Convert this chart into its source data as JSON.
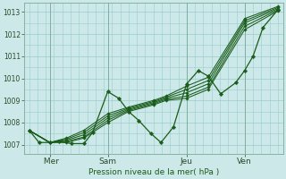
{
  "bg_color": "#cce8e8",
  "plot_bg": "#cce8e8",
  "grid_color": "#99cccc",
  "line_color": "#1a5c1a",
  "ylabel": "Pression niveau de la mer( hPa )",
  "ylim": [
    1006.6,
    1013.4
  ],
  "yticks": [
    1007,
    1008,
    1009,
    1010,
    1011,
    1012,
    1013
  ],
  "xtick_labels": [
    " Mer",
    "Sam",
    "Jeu",
    "Ven"
  ],
  "xtick_positions": [
    0.083,
    0.316,
    0.633,
    0.866
  ],
  "vline_positions": [
    0.083,
    0.316,
    0.633,
    0.866
  ],
  "fan_lines": [
    {
      "x": [
        0.0,
        0.083,
        0.15,
        0.22,
        0.316,
        0.4,
        0.5,
        0.55,
        0.633,
        0.72,
        0.866,
        1.0
      ],
      "y": [
        1007.65,
        1007.1,
        1007.1,
        1007.3,
        1008.0,
        1008.5,
        1008.8,
        1009.0,
        1009.1,
        1009.5,
        1012.2,
        1013.05
      ]
    },
    {
      "x": [
        0.0,
        0.083,
        0.15,
        0.22,
        0.316,
        0.4,
        0.5,
        0.55,
        0.633,
        0.72,
        0.866,
        1.0
      ],
      "y": [
        1007.65,
        1007.1,
        1007.15,
        1007.35,
        1008.1,
        1008.55,
        1008.85,
        1009.05,
        1009.2,
        1009.6,
        1012.35,
        1013.1
      ]
    },
    {
      "x": [
        0.0,
        0.083,
        0.15,
        0.22,
        0.316,
        0.4,
        0.5,
        0.55,
        0.633,
        0.72,
        0.866,
        1.0
      ],
      "y": [
        1007.65,
        1007.1,
        1007.2,
        1007.45,
        1008.2,
        1008.6,
        1008.9,
        1009.1,
        1009.35,
        1009.75,
        1012.5,
        1013.15
      ]
    },
    {
      "x": [
        0.0,
        0.083,
        0.15,
        0.22,
        0.316,
        0.4,
        0.5,
        0.55,
        0.633,
        0.72,
        0.866,
        1.0
      ],
      "y": [
        1007.65,
        1007.1,
        1007.25,
        1007.55,
        1008.3,
        1008.65,
        1008.95,
        1009.15,
        1009.5,
        1009.9,
        1012.6,
        1013.2
      ]
    },
    {
      "x": [
        0.0,
        0.083,
        0.15,
        0.22,
        0.316,
        0.4,
        0.5,
        0.55,
        0.633,
        0.72,
        0.866,
        1.0
      ],
      "y": [
        1007.65,
        1007.1,
        1007.3,
        1007.65,
        1008.4,
        1008.7,
        1009.0,
        1009.2,
        1009.65,
        1010.05,
        1012.7,
        1013.25
      ]
    }
  ],
  "volatile_line": {
    "x": [
      0.0,
      0.04,
      0.083,
      0.12,
      0.17,
      0.22,
      0.255,
      0.316,
      0.36,
      0.4,
      0.44,
      0.49,
      0.53,
      0.58,
      0.633,
      0.68,
      0.72,
      0.77,
      0.83,
      0.866,
      0.9,
      0.94,
      1.0
    ],
    "y": [
      1007.65,
      1007.1,
      1007.1,
      1007.15,
      1007.05,
      1007.05,
      1007.55,
      1009.4,
      1009.1,
      1008.5,
      1008.1,
      1007.5,
      1007.1,
      1007.8,
      1009.75,
      1010.35,
      1010.1,
      1009.3,
      1009.8,
      1010.35,
      1011.0,
      1012.3,
      1013.1
    ]
  }
}
